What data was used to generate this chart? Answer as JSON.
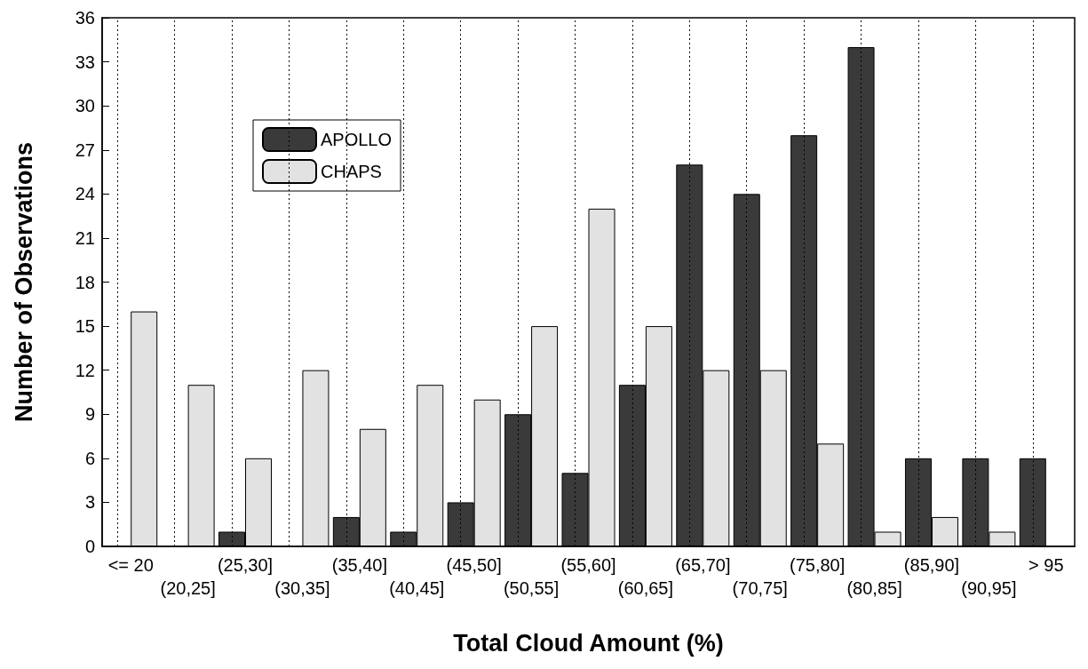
{
  "chart_data": {
    "type": "bar",
    "xlabel": "Total Cloud Amount (%)",
    "ylabel": "Number of Observations",
    "categories": [
      "<= 20",
      "(20,25]",
      "(25,30]",
      "(30,35]",
      "(35,40]",
      "(40,45]",
      "(45,50]",
      "(50,55]",
      "(55,60]",
      "(60,65]",
      "(65,70]",
      "(70,75]",
      "(75,80]",
      "(80,85]",
      "(85,90]",
      "(90,95]",
      "> 95"
    ],
    "series": [
      {
        "name": "APOLLO",
        "color": "#3a3a3a",
        "values": [
          0,
          0,
          1,
          0,
          2,
          1,
          3,
          9,
          5,
          11,
          26,
          24,
          28,
          34,
          6,
          6,
          6
        ]
      },
      {
        "name": "CHAPS",
        "color": "#e2e2e2",
        "values": [
          16,
          11,
          6,
          12,
          8,
          11,
          10,
          15,
          23,
          15,
          12,
          12,
          7,
          1,
          2,
          1,
          0
        ]
      }
    ],
    "ylim": [
      0,
      36
    ],
    "yticks": [
      0,
      3,
      6,
      9,
      12,
      15,
      18,
      21,
      24,
      27,
      30,
      33,
      36
    ],
    "grid": "x",
    "legend": "top left"
  }
}
